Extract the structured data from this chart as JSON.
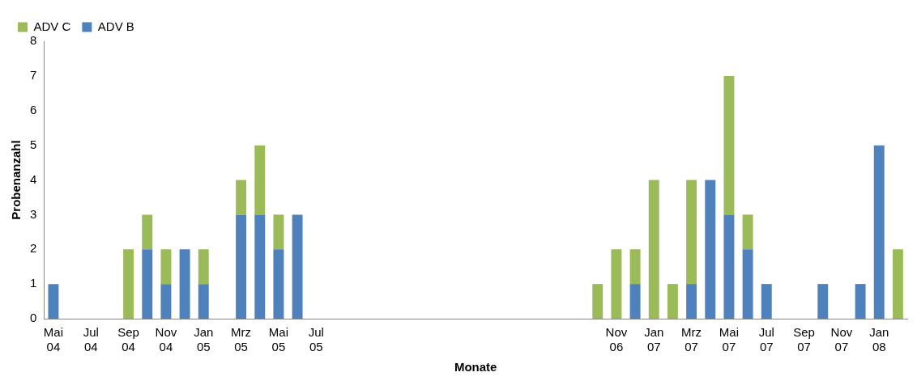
{
  "chart_data": {
    "type": "bar",
    "stacked": true,
    "xlabel": "Monate",
    "ylabel": "Probenanzahl",
    "categories": [
      "Mai 04",
      null,
      "Jul 04",
      null,
      "Sep 04",
      null,
      "Nov 04",
      null,
      "Jan 05",
      null,
      "Mrz 05",
      null,
      "Mai 05",
      null,
      "Jul 05",
      null,
      null,
      null,
      null,
      null,
      null,
      null,
      null,
      null,
      null,
      null,
      null,
      null,
      null,
      null,
      "Nov 06",
      null,
      "Jan 07",
      null,
      "Mrz 07",
      null,
      "Mai 07",
      null,
      "Jul 07",
      null,
      "Sep 07",
      null,
      "Nov 07",
      null,
      "Jan 08",
      null
    ],
    "series": [
      {
        "name": "ADV B",
        "color": "#4f81bd",
        "values": [
          1,
          0,
          0,
          0,
          0,
          2,
          1,
          2,
          1,
          0,
          3,
          3,
          2,
          3,
          0,
          0,
          0,
          0,
          0,
          0,
          0,
          0,
          0,
          0,
          0,
          0,
          0,
          0,
          0,
          0,
          0,
          1,
          0,
          0,
          1,
          4,
          3,
          2,
          1,
          0,
          0,
          1,
          0,
          1,
          5,
          0
        ]
      },
      {
        "name": "ADV C",
        "color": "#9bbb59",
        "values": [
          0,
          0,
          0,
          0,
          2,
          1,
          1,
          0,
          1,
          0,
          1,
          2,
          1,
          0,
          0,
          0,
          0,
          0,
          0,
          0,
          0,
          0,
          0,
          0,
          0,
          0,
          0,
          0,
          0,
          1,
          2,
          1,
          4,
          1,
          3,
          0,
          4,
          1,
          0,
          0,
          0,
          0,
          0,
          0,
          0,
          2
        ]
      }
    ],
    "ylim": [
      0,
      8
    ],
    "yticks": [
      0,
      1,
      2,
      3,
      4,
      5,
      6,
      7,
      8
    ],
    "grid": false,
    "legend": "top left"
  }
}
